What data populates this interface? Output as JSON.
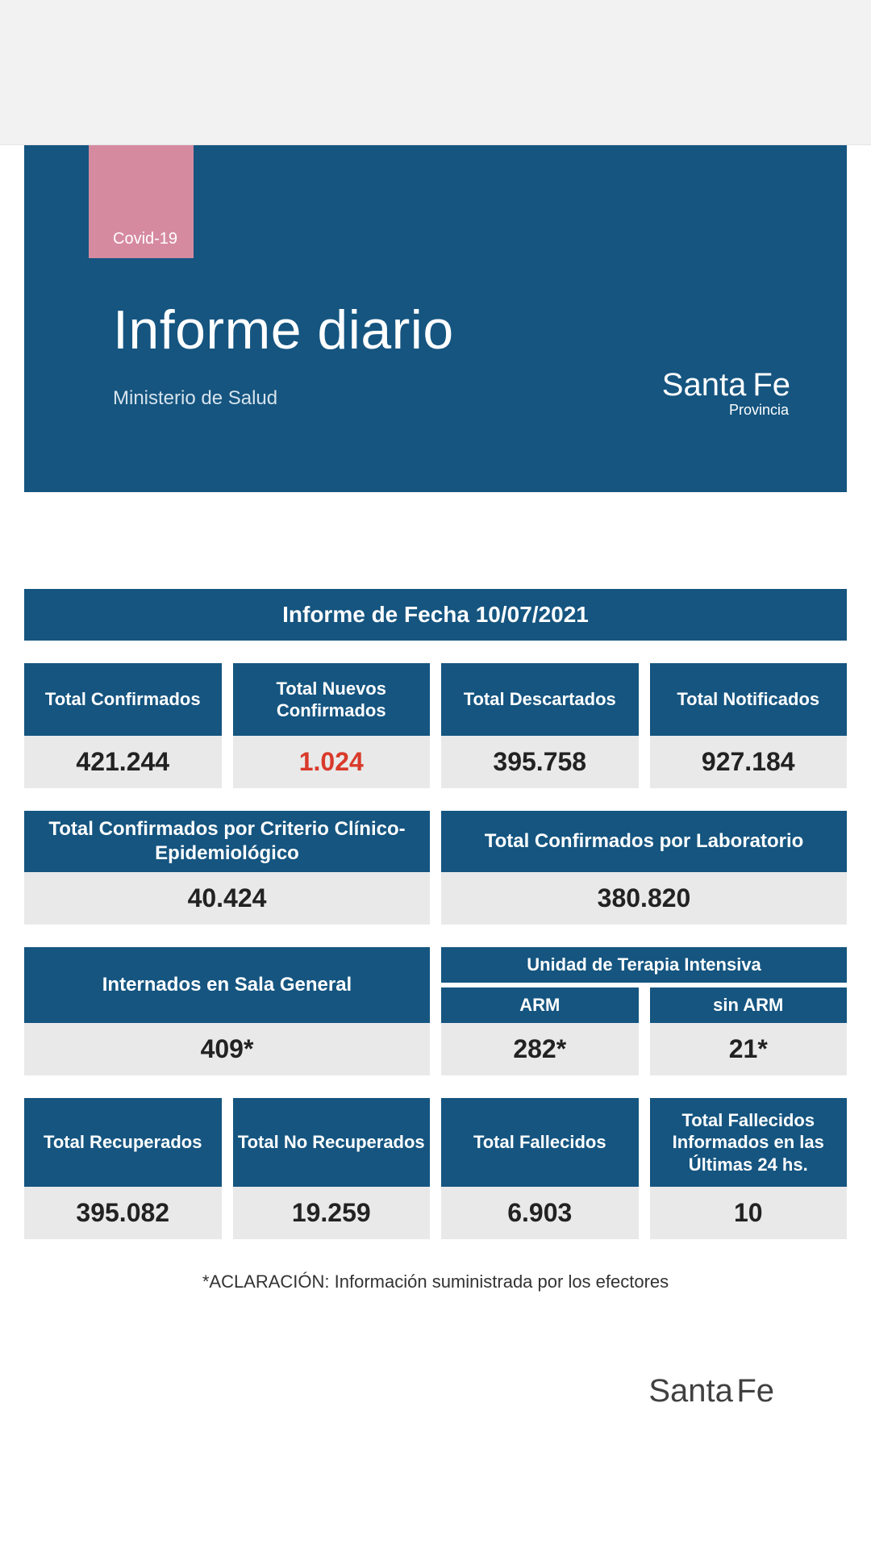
{
  "colors": {
    "brand_blue": "#155580",
    "pink": "#d68aa0",
    "page_bg": "#ffffff",
    "topbar_bg": "#f2f2f2",
    "val_bg": "#e9e9e9",
    "highlight": "#d93a2b"
  },
  "hero": {
    "tag": "Covid-19",
    "title": "Informe diario",
    "subtitle": "Ministerio de Salud",
    "logo_santa": "Santa",
    "logo_fe": "Fe",
    "logo_prov": "Provincia"
  },
  "datebar": "Informe de Fecha 10/07/2021",
  "row1": {
    "c0": {
      "label": "Total Confirmados",
      "value": "421.244",
      "highlight": false
    },
    "c1": {
      "label": "Total Nuevos Confirmados",
      "value": "1.024",
      "highlight": true
    },
    "c2": {
      "label": "Total Descartados",
      "value": "395.758",
      "highlight": false
    },
    "c3": {
      "label": "Total Notificados",
      "value": "927.184",
      "highlight": false
    }
  },
  "row2": {
    "c0": {
      "label": "Total Confirmados por Criterio Clínico-Epidemiológico",
      "value": "40.424"
    },
    "c1": {
      "label": "Total Confirmados por Laboratorio",
      "value": "380.820"
    }
  },
  "row3": {
    "left": {
      "label": "Internados en Sala General",
      "value": "409*"
    },
    "right_group": "Unidad de Terapia Intensiva",
    "arm": {
      "label": "ARM",
      "value": "282*"
    },
    "sin_arm": {
      "label": "sin ARM",
      "value": "21*"
    }
  },
  "row4": {
    "c0": {
      "label": "Total Recuperados",
      "value": "395.082"
    },
    "c1": {
      "label": "Total No Recuperados",
      "value": "19.259"
    },
    "c2": {
      "label": "Total Fallecidos",
      "value": "6.903"
    },
    "c3": {
      "label": "Total Fallecidos Informados en las Últimas 24 hs.",
      "value": "10"
    }
  },
  "footnote": "*ACLARACIÓN: Información suministrada por los efectores",
  "footer": {
    "santa": "Santa",
    "fe": "Fe"
  }
}
